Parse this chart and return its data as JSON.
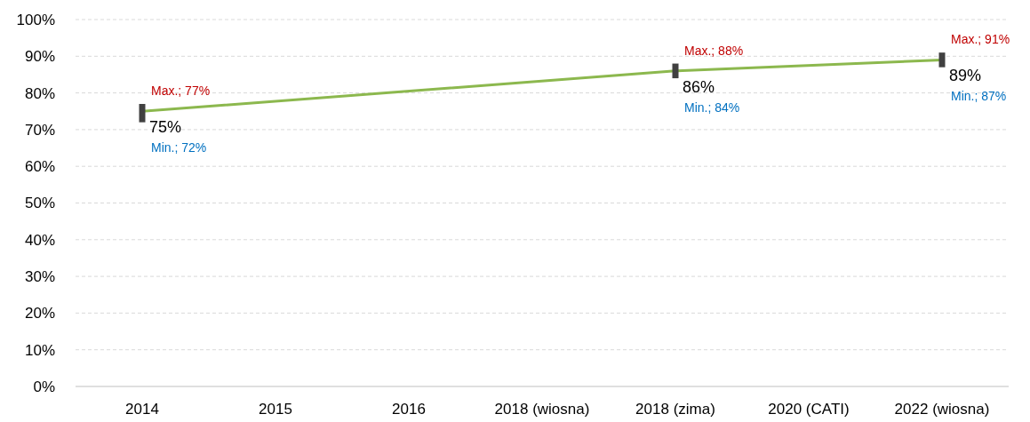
{
  "chart_data": {
    "type": "line",
    "categories": [
      "2014",
      "2015",
      "2016",
      "2018 (wiosna)",
      "2018 (zima)",
      "2020 (CATI)",
      "2022 (wiosna)"
    ],
    "series": [
      {
        "color": "#8cb84e",
        "values": [
          75,
          null,
          null,
          null,
          86,
          null,
          89
        ],
        "errors": [
          [
            72,
            77
          ],
          null,
          null,
          null,
          [
            84,
            88
          ],
          null,
          [
            87,
            91
          ]
        ],
        "value_labels": [
          "75%",
          null,
          null,
          null,
          "86%",
          null,
          "89%"
        ]
      }
    ],
    "ylim": [
      0,
      100
    ],
    "yticks": [
      {
        "value": 0,
        "label": "0%"
      },
      {
        "value": 10,
        "label": "10%"
      },
      {
        "value": 20,
        "label": "20%"
      },
      {
        "value": 30,
        "label": "30%"
      },
      {
        "value": 40,
        "label": "40%"
      },
      {
        "value": 50,
        "label": "50%"
      },
      {
        "value": 60,
        "label": "60%"
      },
      {
        "value": 70,
        "label": "70%"
      },
      {
        "value": 80,
        "label": "80%"
      },
      {
        "value": 90,
        "label": "90%"
      },
      {
        "value": 100,
        "label": "100%"
      }
    ],
    "grid": "y",
    "line_style": "solid",
    "annotations": [
      "Max.; 77%",
      "Min.; 72%",
      "Max.; 88%",
      "Min.; 84%",
      "Max.; 91%",
      "Min.; 87%"
    ]
  }
}
